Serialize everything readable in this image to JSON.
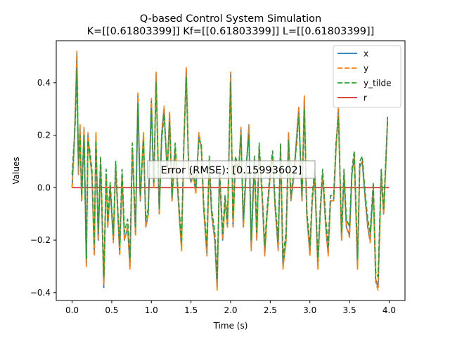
{
  "chart_data": {
    "type": "line",
    "title": "Q-based Control System Simulation",
    "subtitle": "K=[[0.61803399]] Kf=[[0.61803399]] L=[[0.61803399]]",
    "xlabel": "Time (s)",
    "ylabel": "Values",
    "xlim": [
      -0.2,
      4.2
    ],
    "ylim": [
      -0.43,
      0.56
    ],
    "xticks": [
      0.0,
      0.5,
      1.0,
      1.5,
      2.0,
      2.5,
      3.0,
      3.5,
      4.0
    ],
    "xtick_labels": [
      "0.0",
      "0.5",
      "1.0",
      "1.5",
      "2.0",
      "2.5",
      "3.0",
      "3.5",
      "4.0"
    ],
    "yticks": [
      -0.4,
      -0.2,
      0.0,
      0.2,
      0.4
    ],
    "ytick_labels": [
      "−0.4",
      "−0.2",
      "0.0",
      "0.2",
      "0.4"
    ],
    "grid": false,
    "legend_position": "top-right",
    "annotation": "Error (RMSE): [0.15993602]",
    "series": [
      {
        "name": "x",
        "color": "#1f77b4",
        "style": "solid",
        "x": [
          0.0,
          0.02,
          0.04,
          0.06,
          0.08,
          0.1,
          0.12,
          0.15,
          0.18,
          0.2,
          0.22,
          0.25,
          0.28,
          0.3,
          0.33,
          0.36,
          0.4,
          0.43,
          0.45,
          0.48,
          0.52,
          0.55,
          0.58,
          0.6,
          0.63,
          0.66,
          0.7,
          0.73,
          0.76,
          0.8,
          0.83,
          0.86,
          0.9,
          0.93,
          0.96,
          1.0,
          1.03,
          1.06,
          1.1,
          1.13,
          1.16,
          1.2,
          1.23,
          1.26,
          1.3,
          1.34,
          1.38,
          1.41,
          1.44,
          1.47,
          1.5,
          1.53,
          1.56,
          1.6,
          1.63,
          1.66,
          1.7,
          1.73,
          1.76,
          1.8,
          1.83,
          1.86,
          1.9,
          1.93,
          1.96,
          2.0,
          2.03,
          2.06,
          2.1,
          2.13,
          2.16,
          2.2,
          2.23,
          2.26,
          2.3,
          2.33,
          2.36,
          2.4,
          2.43,
          2.46,
          2.5,
          2.53,
          2.56,
          2.6,
          2.63,
          2.66,
          2.7,
          2.73,
          2.76,
          2.8,
          2.83,
          2.86,
          2.9,
          2.93,
          2.96,
          3.0,
          3.03,
          3.06,
          3.1,
          3.13,
          3.16,
          3.2,
          3.23,
          3.26,
          3.3,
          3.33,
          3.36,
          3.4,
          3.43,
          3.46,
          3.5,
          3.53,
          3.56,
          3.6,
          3.63,
          3.66,
          3.7,
          3.73,
          3.76,
          3.8,
          3.83,
          3.86,
          3.9,
          3.93,
          3.96,
          3.98
        ],
        "y": [
          0.0,
          0.12,
          0.28,
          0.51,
          0.05,
          0.23,
          -0.05,
          0.22,
          -0.29,
          0.2,
          0.13,
          0.05,
          -0.25,
          0.2,
          -0.2,
          0.1,
          -0.38,
          0.05,
          -0.15,
          0.0,
          -0.2,
          0.08,
          -0.12,
          -0.25,
          0.05,
          -0.2,
          -0.15,
          -0.3,
          0.15,
          -0.18,
          0.35,
          -0.05,
          0.2,
          -0.15,
          -0.1,
          0.33,
          0.0,
          0.43,
          -0.1,
          0.2,
          0.3,
          0.05,
          0.28,
          -0.05,
          0.15,
          -0.05,
          -0.23,
          0.16,
          0.45,
          0.06,
          0.02,
          0.05,
          -0.02,
          0.2,
          0.15,
          -0.08,
          -0.25,
          0.1,
          -0.1,
          -0.2,
          -0.38,
          0.05,
          -0.2,
          -0.05,
          -0.15,
          0.43,
          -0.15,
          0.1,
          0.05,
          0.22,
          -0.15,
          0.08,
          0.23,
          -0.23,
          0.1,
          -0.2,
          0.15,
          -0.05,
          -0.25,
          -0.1,
          0.05,
          0.12,
          -0.07,
          -0.23,
          0.15,
          -0.3,
          -0.2,
          0.2,
          -0.05,
          0.05,
          0.18,
          0.3,
          -0.05,
          0.34,
          -0.1,
          -0.25,
          -0.05,
          0.05,
          -0.3,
          -0.1,
          0.05,
          -0.15,
          -0.25,
          -0.05,
          -0.05,
          0.15,
          0.3,
          -0.2,
          0.05,
          -0.15,
          -0.18,
          0.05,
          0.12,
          -0.3,
          0.08,
          0.1,
          -0.05,
          -0.15,
          -0.2,
          0.0,
          -0.35,
          -0.38,
          0.05,
          -0.1,
          0.1,
          0.27
        ]
      },
      {
        "name": "y",
        "color": "#ff7f0e",
        "style": "dashed",
        "x": [
          0.0,
          0.02,
          0.04,
          0.06,
          0.08,
          0.1,
          0.12,
          0.15,
          0.18,
          0.2,
          0.22,
          0.25,
          0.28,
          0.3,
          0.33,
          0.36,
          0.4,
          0.43,
          0.45,
          0.48,
          0.52,
          0.55,
          0.58,
          0.6,
          0.63,
          0.66,
          0.7,
          0.73,
          0.76,
          0.8,
          0.83,
          0.86,
          0.9,
          0.93,
          0.96,
          1.0,
          1.03,
          1.06,
          1.1,
          1.13,
          1.16,
          1.2,
          1.23,
          1.26,
          1.3,
          1.34,
          1.38,
          1.41,
          1.44,
          1.47,
          1.5,
          1.53,
          1.56,
          1.6,
          1.63,
          1.66,
          1.7,
          1.73,
          1.76,
          1.8,
          1.83,
          1.86,
          1.9,
          1.93,
          1.96,
          2.0,
          2.03,
          2.06,
          2.1,
          2.13,
          2.16,
          2.2,
          2.23,
          2.26,
          2.3,
          2.33,
          2.36,
          2.4,
          2.43,
          2.46,
          2.5,
          2.53,
          2.56,
          2.6,
          2.63,
          2.66,
          2.7,
          2.73,
          2.76,
          2.8,
          2.83,
          2.86,
          2.9,
          2.93,
          2.96,
          3.0,
          3.03,
          3.06,
          3.1,
          3.13,
          3.16,
          3.2,
          3.23,
          3.26,
          3.3,
          3.33,
          3.36,
          3.4,
          3.43,
          3.46,
          3.5,
          3.53,
          3.56,
          3.6,
          3.63,
          3.66,
          3.7,
          3.73,
          3.76,
          3.8,
          3.83,
          3.86,
          3.9,
          3.93,
          3.96,
          3.98
        ],
        "y": [
          0.0,
          0.12,
          0.29,
          0.52,
          0.05,
          0.24,
          -0.05,
          0.23,
          -0.3,
          0.21,
          0.13,
          0.05,
          -0.26,
          0.21,
          -0.2,
          0.1,
          -0.37,
          0.05,
          -0.15,
          0.0,
          -0.21,
          0.08,
          -0.12,
          -0.26,
          0.05,
          -0.2,
          -0.15,
          -0.31,
          0.15,
          -0.18,
          0.36,
          -0.05,
          0.21,
          -0.15,
          -0.1,
          0.34,
          0.0,
          0.44,
          -0.1,
          0.21,
          0.31,
          0.05,
          0.29,
          -0.05,
          0.15,
          -0.05,
          -0.24,
          0.16,
          0.46,
          0.06,
          0.02,
          0.05,
          -0.02,
          0.21,
          0.15,
          -0.08,
          -0.26,
          0.1,
          -0.1,
          -0.2,
          -0.39,
          0.05,
          -0.2,
          -0.05,
          -0.15,
          0.44,
          -0.15,
          0.1,
          0.05,
          0.23,
          -0.15,
          0.08,
          0.24,
          -0.24,
          0.1,
          -0.2,
          0.15,
          -0.05,
          -0.26,
          -0.1,
          0.05,
          0.12,
          -0.07,
          -0.24,
          0.15,
          -0.31,
          -0.2,
          0.21,
          -0.05,
          0.05,
          0.19,
          0.31,
          -0.05,
          0.35,
          -0.1,
          -0.26,
          -0.05,
          0.05,
          -0.31,
          -0.1,
          0.05,
          -0.15,
          -0.26,
          -0.05,
          -0.05,
          0.15,
          0.31,
          -0.2,
          0.05,
          -0.15,
          -0.19,
          0.05,
          0.12,
          -0.31,
          0.08,
          0.1,
          -0.05,
          -0.15,
          -0.21,
          0.0,
          -0.36,
          -0.39,
          0.05,
          -0.1,
          0.1,
          0.26
        ]
      },
      {
        "name": "y_tilde",
        "color": "#2ca02c",
        "style": "dashed",
        "x": [
          0.0,
          0.02,
          0.04,
          0.06,
          0.08,
          0.1,
          0.12,
          0.15,
          0.18,
          0.2,
          0.22,
          0.25,
          0.28,
          0.3,
          0.33,
          0.36,
          0.4,
          0.43,
          0.45,
          0.48,
          0.52,
          0.55,
          0.58,
          0.6,
          0.63,
          0.66,
          0.7,
          0.73,
          0.76,
          0.8,
          0.83,
          0.86,
          0.9,
          0.93,
          0.96,
          1.0,
          1.03,
          1.06,
          1.1,
          1.13,
          1.16,
          1.2,
          1.23,
          1.26,
          1.3,
          1.34,
          1.38,
          1.41,
          1.44,
          1.47,
          1.5,
          1.53,
          1.56,
          1.6,
          1.63,
          1.66,
          1.7,
          1.73,
          1.76,
          1.8,
          1.83,
          1.86,
          1.9,
          1.93,
          1.96,
          2.0,
          2.03,
          2.06,
          2.1,
          2.13,
          2.16,
          2.2,
          2.23,
          2.26,
          2.3,
          2.33,
          2.36,
          2.4,
          2.43,
          2.46,
          2.5,
          2.53,
          2.56,
          2.6,
          2.63,
          2.66,
          2.7,
          2.73,
          2.76,
          2.8,
          2.83,
          2.86,
          2.9,
          2.93,
          2.96,
          3.0,
          3.03,
          3.06,
          3.1,
          3.13,
          3.16,
          3.2,
          3.23,
          3.26,
          3.3,
          3.33,
          3.36,
          3.4,
          3.43,
          3.46,
          3.5,
          3.53,
          3.56,
          3.6,
          3.63,
          3.66,
          3.7,
          3.73,
          3.76,
          3.8,
          3.83,
          3.86,
          3.9,
          3.93,
          3.96,
          3.98
        ],
        "y": [
          0.05,
          0.15,
          0.25,
          0.45,
          0.08,
          0.2,
          -0.03,
          0.2,
          -0.27,
          0.18,
          0.15,
          0.07,
          -0.22,
          0.18,
          -0.17,
          0.12,
          -0.34,
          0.07,
          -0.12,
          0.02,
          -0.18,
          0.1,
          -0.1,
          -0.22,
          0.07,
          -0.17,
          -0.12,
          -0.27,
          0.17,
          -0.15,
          0.32,
          -0.03,
          0.18,
          -0.12,
          -0.08,
          0.3,
          0.02,
          0.4,
          -0.08,
          0.18,
          0.28,
          0.07,
          0.25,
          -0.03,
          0.17,
          -0.03,
          -0.2,
          0.18,
          0.42,
          0.08,
          0.04,
          0.07,
          0.0,
          0.18,
          0.17,
          -0.06,
          -0.22,
          0.12,
          -0.08,
          -0.17,
          -0.35,
          0.07,
          -0.17,
          -0.03,
          -0.12,
          0.4,
          -0.12,
          0.12,
          0.07,
          0.2,
          -0.12,
          0.1,
          0.2,
          -0.2,
          0.12,
          -0.17,
          0.17,
          -0.03,
          -0.22,
          -0.08,
          0.07,
          0.14,
          -0.05,
          -0.2,
          0.17,
          -0.27,
          -0.17,
          0.18,
          -0.03,
          0.07,
          0.16,
          0.27,
          -0.03,
          0.3,
          -0.08,
          -0.22,
          -0.03,
          0.07,
          -0.27,
          -0.08,
          0.07,
          -0.12,
          -0.22,
          -0.03,
          -0.03,
          0.17,
          0.27,
          -0.17,
          0.07,
          -0.12,
          -0.15,
          0.07,
          0.14,
          -0.27,
          0.1,
          0.12,
          -0.03,
          -0.12,
          -0.17,
          0.02,
          -0.32,
          -0.34,
          0.07,
          -0.08,
          0.12,
          0.25
        ]
      },
      {
        "name": "r",
        "color": "#d62728",
        "style": "solid",
        "x": [
          0.0,
          4.0
        ],
        "y": [
          0.0,
          0.0
        ]
      }
    ]
  }
}
